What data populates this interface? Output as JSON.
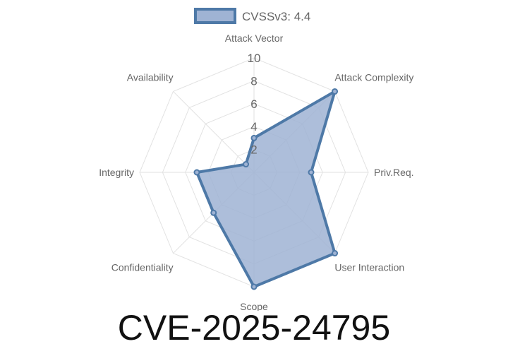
{
  "title": "CVE-2025-24795",
  "chart_data": {
    "type": "radar",
    "axes": [
      "Attack Vector",
      "Attack Complexity",
      "Priv.Req.",
      "User Interaction",
      "Scope",
      "Confidentiality",
      "Integrity",
      "Availability"
    ],
    "r_ticks": [
      "2",
      "4",
      "6",
      "8",
      "10"
    ],
    "r_range": [
      0,
      10
    ],
    "grid": true,
    "legend_position": "top",
    "series": [
      {
        "name": "CVSSv3: 4.4",
        "values": [
          3,
          10,
          5,
          10,
          10,
          5,
          5,
          1
        ],
        "fill": "#9fb3d4",
        "stroke": "#4e79a7"
      }
    ]
  }
}
